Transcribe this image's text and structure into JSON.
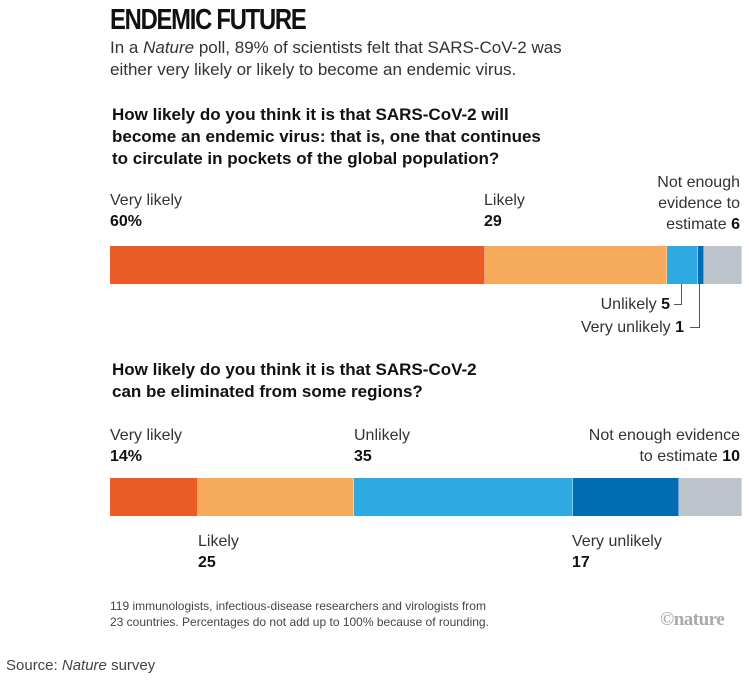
{
  "title": "ENDEMIC FUTURE",
  "subtitle": {
    "pre": "In a ",
    "italic": "Nature",
    "post": " poll, 89% of scientists felt that SARS-CoV-2 was",
    "line2": "either very likely or likely to become an endemic virus."
  },
  "chart_data": [
    {
      "type": "bar",
      "orientation": "horizontal-stacked",
      "question": [
        "How likely do you think it is that SARS-CoV-2 will",
        "become an endemic virus: that is, one that continues",
        "to circulate in pockets of the global population?"
      ],
      "categories": [
        "Very likely",
        "Likely",
        "Unlikely",
        "Very unlikely",
        "Not enough evidence to estimate"
      ],
      "values": [
        60,
        29,
        5,
        1,
        6
      ],
      "unit": "%",
      "colors": [
        "#e95c26",
        "#f6ab5b",
        "#2ea9e1",
        "#006cb2",
        "#bcc3cb"
      ],
      "labels": {
        "very_likely": "Very likely",
        "very_likely_value": "60%",
        "likely": "Likely",
        "likely_value": "29",
        "unlikely": "Unlikely",
        "unlikely_value": "5",
        "very_unlikely": "Very unlikely",
        "very_unlikely_value": "1",
        "ne_1": "Not enough",
        "ne_2": "evidence to",
        "ne_3": "estimate",
        "ne_value": "6"
      }
    },
    {
      "type": "bar",
      "orientation": "horizontal-stacked",
      "question": [
        "How likely do you think it is that SARS-CoV-2",
        "can be eliminated from some regions?"
      ],
      "categories": [
        "Very likely",
        "Likely",
        "Unlikely",
        "Very unlikely",
        "Not enough evidence to estimate"
      ],
      "values": [
        14,
        25,
        35,
        17,
        10
      ],
      "unit": "%",
      "colors": [
        "#e95c26",
        "#f6ab5b",
        "#2ea9e1",
        "#006cb2",
        "#bcc3cb"
      ],
      "labels": {
        "very_likely": "Very likely",
        "very_likely_value": "14%",
        "likely": "Likely",
        "likely_value": "25",
        "unlikely": "Unlikely",
        "unlikely_value": "35",
        "very_unlikely": "Very unlikely",
        "very_unlikely_value": "17",
        "ne_1": "Not enough evidence",
        "ne_2": "to estimate",
        "ne_value": "10"
      }
    }
  ],
  "footnote": [
    "119 immunologists, infectious-disease researchers and virologists from",
    "23 countries. Percentages do not add up to 100% because of rounding."
  ],
  "logo": "©nature",
  "source": {
    "label": "Source: ",
    "italic": "Nature",
    "post": " survey"
  }
}
